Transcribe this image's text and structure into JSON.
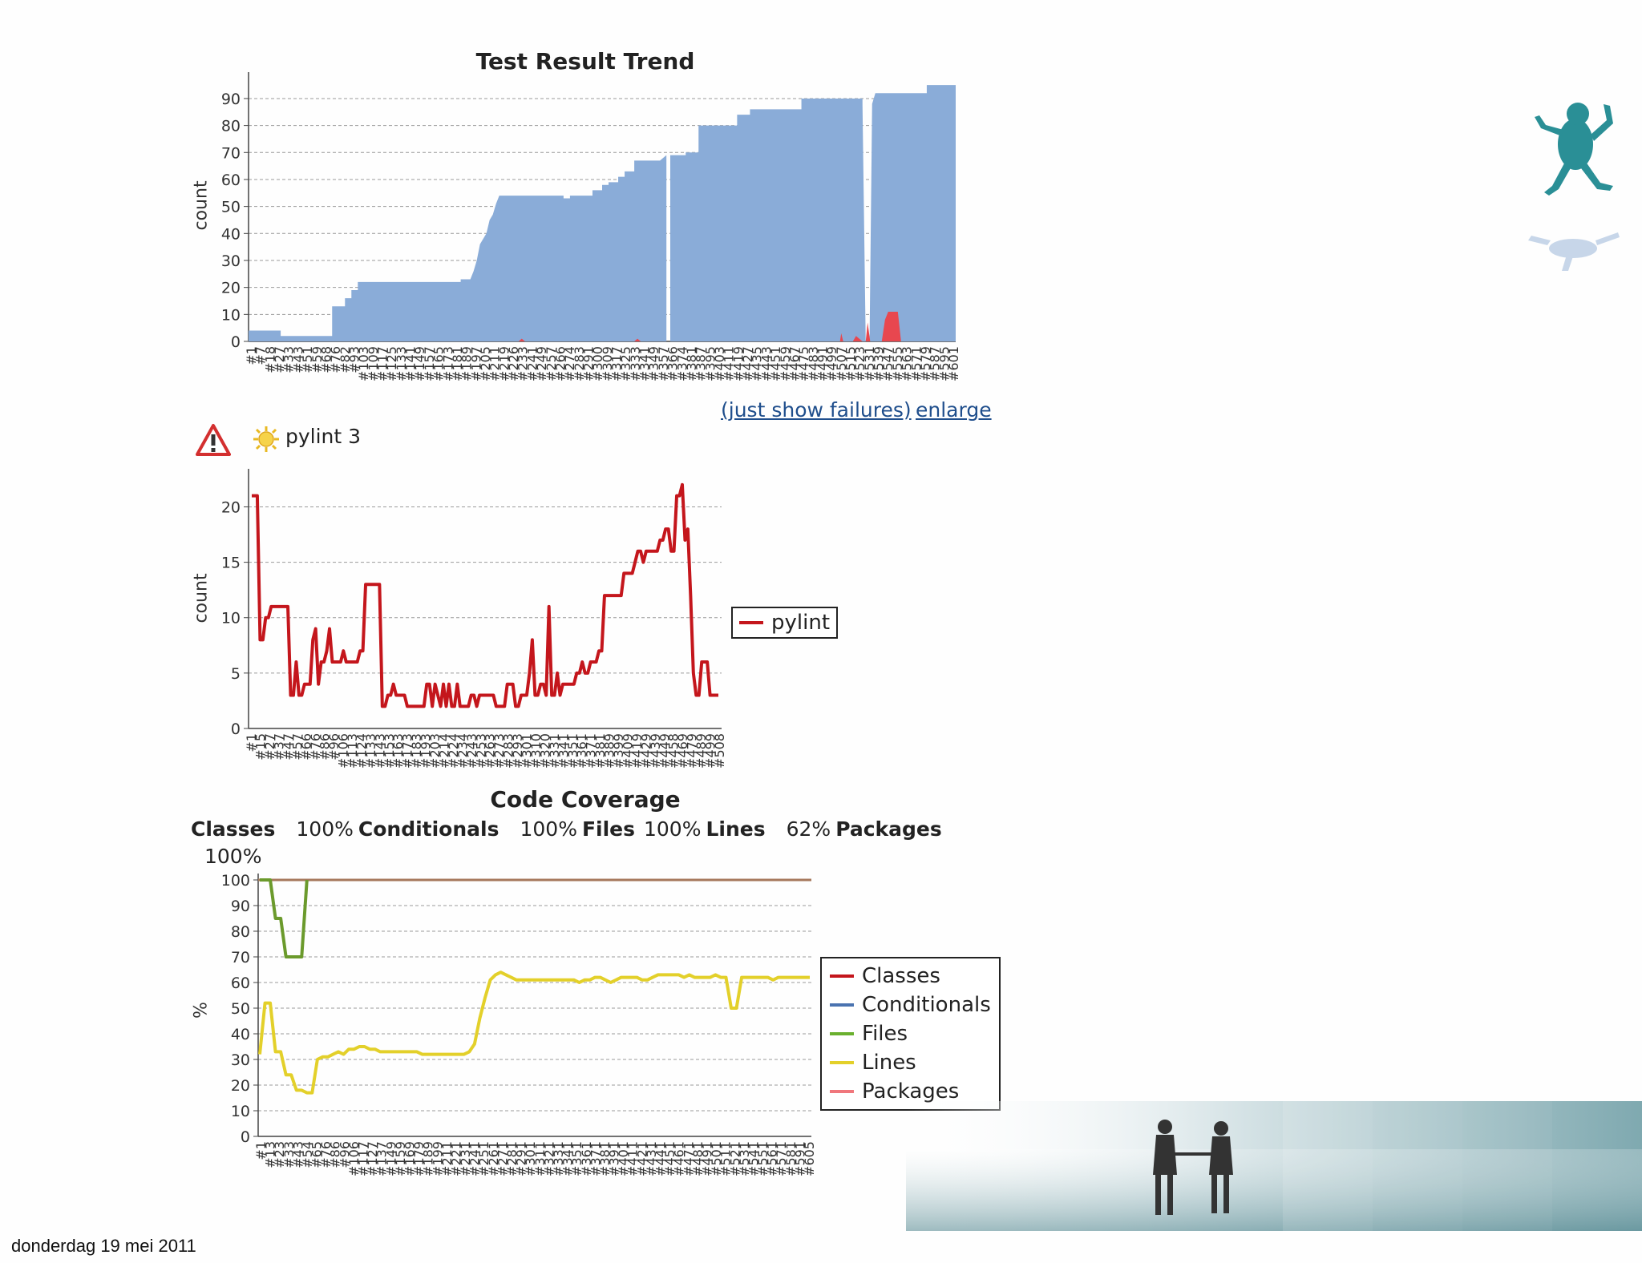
{
  "footer": {
    "date": "donderdag 19 mei 2011"
  },
  "colors": {
    "pass": "#8aacd8",
    "fail": "#e8474f",
    "pylint": "#c4161c",
    "classes": "#c4161c",
    "conditionals": "#4a73b0",
    "files": "#6ab02e",
    "lines": "#e3d02a",
    "packages": "#f0777c",
    "warning": "#d32f2f"
  },
  "links": {
    "just_show_failures": "(just show failures)",
    "enlarge": "enlarge"
  },
  "pylint_header": {
    "label": "pylint 3",
    "warning_icon": "warning-triangle-icon",
    "sun_icon": "sun-icon"
  },
  "coverage_summary": {
    "items": [
      {
        "name": "Classes",
        "value": "100%"
      },
      {
        "name": "Conditionals",
        "value": "100%"
      },
      {
        "name": "Files",
        "value": "100%"
      },
      {
        "name": "Lines",
        "value": "62%"
      },
      {
        "name": "Packages",
        "value": "100%"
      }
    ]
  },
  "chart_data": [
    {
      "type": "area",
      "title": "Test Result Trend",
      "ylabel": "count",
      "xlabel": "",
      "ylim": [
        0,
        98
      ],
      "yticks": [
        0,
        10,
        20,
        30,
        40,
        50,
        60,
        70,
        80,
        90
      ],
      "grid": true,
      "x_ticks": [
        "#1",
        "#7",
        "#18",
        "#27",
        "#33",
        "#43",
        "#51",
        "#59",
        "#68",
        "#76",
        "#82",
        "#93",
        "#103",
        "#109",
        "#117",
        "#125",
        "#133",
        "#141",
        "#149",
        "#157",
        "#165",
        "#173",
        "#181",
        "#189",
        "#197",
        "#205",
        "#211",
        "#219",
        "#226",
        "#233",
        "#241",
        "#249",
        "#257",
        "#266",
        "#274",
        "#283",
        "#291",
        "#300",
        "#309",
        "#317",
        "#325",
        "#333",
        "#341",
        "#349",
        "#357",
        "#366",
        "#374",
        "#381",
        "#387",
        "#395",
        "#403",
        "#411",
        "#419",
        "#427",
        "#435",
        "#443",
        "#451",
        "#459",
        "#467",
        "#475",
        "#483",
        "#491",
        "#499",
        "#507",
        "#515",
        "#523",
        "#531",
        "#539",
        "#547",
        "#555",
        "#563",
        "#571",
        "#579",
        "#587",
        "#595",
        "#601"
      ],
      "series": [
        {
          "name": "Passed",
          "points": [
            [
              0,
              4
            ],
            [
              0.05,
              4
            ],
            [
              0.05,
              2
            ],
            [
              0.13,
              2
            ],
            [
              0.13,
              13
            ],
            [
              0.15,
              13
            ],
            [
              0.15,
              16
            ],
            [
              0.16,
              16
            ],
            [
              0.16,
              19
            ],
            [
              0.17,
              19
            ],
            [
              0.17,
              22
            ],
            [
              0.33,
              22
            ],
            [
              0.33,
              23
            ],
            [
              0.345,
              23
            ],
            [
              0.35,
              26
            ],
            [
              0.355,
              30
            ],
            [
              0.36,
              36
            ],
            [
              0.37,
              40
            ],
            [
              0.375,
              45
            ],
            [
              0.38,
              47
            ],
            [
              0.385,
              51
            ],
            [
              0.39,
              54
            ],
            [
              0.49,
              54
            ],
            [
              0.49,
              53
            ],
            [
              0.5,
              53
            ],
            [
              0.5,
              54
            ],
            [
              0.535,
              54
            ],
            [
              0.535,
              56
            ],
            [
              0.55,
              56
            ],
            [
              0.55,
              58
            ],
            [
              0.56,
              58
            ],
            [
              0.56,
              59
            ],
            [
              0.575,
              59
            ],
            [
              0.575,
              61
            ],
            [
              0.585,
              61
            ],
            [
              0.585,
              63
            ],
            [
              0.6,
              63
            ],
            [
              0.6,
              67
            ],
            [
              0.64,
              67
            ],
            [
              0.645,
              68
            ],
            [
              0.65,
              69
            ],
            [
              0.65,
              0
            ],
            [
              0.656,
              0
            ],
            [
              0.656,
              69
            ],
            [
              0.68,
              69
            ],
            [
              0.68,
              70
            ],
            [
              0.7,
              70
            ],
            [
              0.7,
              80
            ],
            [
              0.76,
              80
            ],
            [
              0.76,
              84
            ],
            [
              0.78,
              84
            ],
            [
              0.78,
              86
            ],
            [
              0.86,
              86
            ],
            [
              0.86,
              90
            ],
            [
              0.955,
              90
            ],
            [
              0.955,
              88
            ],
            [
              0.96,
              0
            ],
            [
              0.966,
              0
            ],
            [
              0.97,
              88
            ],
            [
              0.975,
              92
            ],
            [
              1.055,
              92
            ],
            [
              1.055,
              95
            ],
            [
              1.1,
              95
            ]
          ]
        },
        {
          "name": "Failed",
          "points": [
            [
              0.42,
              0
            ],
            [
              0.425,
              1
            ],
            [
              0.43,
              0
            ],
            [
              0.6,
              0
            ],
            [
              0.605,
              1
            ],
            [
              0.61,
              0
            ],
            [
              0.92,
              0
            ],
            [
              0.922,
              3
            ],
            [
              0.925,
              0
            ],
            [
              0.94,
              0
            ],
            [
              0.945,
              2
            ],
            [
              0.955,
              0
            ],
            [
              0.96,
              0
            ],
            [
              0.963,
              7
            ],
            [
              0.967,
              0
            ],
            [
              0.985,
              0
            ],
            [
              0.99,
              8
            ],
            [
              0.995,
              11
            ],
            [
              1.01,
              11
            ],
            [
              1.015,
              0
            ]
          ]
        }
      ],
      "x_range": [
        0,
        1.1
      ]
    },
    {
      "type": "line",
      "title": "",
      "ylabel": "count",
      "xlabel": "",
      "ylim": [
        0,
        23
      ],
      "yticks": [
        0,
        5,
        10,
        15,
        20
      ],
      "grid": true,
      "legend": {
        "placement": "right",
        "entries": [
          "pylint"
        ]
      },
      "x_ticks": [
        "#1",
        "#15",
        "#27",
        "#37",
        "#47",
        "#57",
        "#66",
        "#76",
        "#86",
        "#96",
        "#106",
        "#113",
        "#124",
        "#133",
        "#143",
        "#153",
        "#163",
        "#173",
        "#183",
        "#193",
        "#203",
        "#214",
        "#224",
        "#234",
        "#243",
        "#253",
        "#263",
        "#273",
        "#283",
        "#293",
        "#301",
        "#310",
        "#320",
        "#331",
        "#341",
        "#351",
        "#361",
        "#371",
        "#381",
        "#389",
        "#399",
        "#409",
        "#419",
        "#429",
        "#439",
        "#449",
        "#458",
        "#469",
        "#479",
        "#489",
        "#499",
        "#508"
      ],
      "series": [
        {
          "name": "pylint",
          "values": [
            21,
            21,
            21,
            8,
            8,
            10,
            10,
            11,
            11,
            11,
            11,
            11,
            11,
            11,
            3,
            3,
            6,
            3,
            3,
            4,
            4,
            4,
            8,
            9,
            4,
            6,
            6,
            7,
            9,
            6,
            6,
            6,
            6,
            7,
            6,
            6,
            6,
            6,
            6,
            7,
            7,
            13,
            13,
            13,
            13,
            13,
            13,
            2,
            2,
            3,
            3,
            4,
            3,
            3,
            3,
            3,
            2,
            2,
            2,
            2,
            2,
            2,
            2,
            4,
            4,
            2,
            4,
            3,
            2,
            4,
            2,
            4,
            2,
            2,
            4,
            2,
            2,
            2,
            2,
            3,
            3,
            2,
            3,
            3,
            3,
            3,
            3,
            3,
            2,
            2,
            2,
            2,
            4,
            4,
            4,
            2,
            2,
            3,
            3,
            3,
            5,
            8,
            3,
            3,
            4,
            4,
            3,
            11,
            3,
            3,
            5,
            3,
            4,
            4,
            4,
            4,
            4,
            5,
            5,
            6,
            5,
            5,
            6,
            6,
            6,
            7,
            7,
            12,
            12,
            12,
            12,
            12,
            12,
            12,
            14,
            14,
            14,
            14,
            15,
            16,
            16,
            15,
            16,
            16,
            16,
            16,
            16,
            17,
            17,
            18,
            18,
            16,
            16,
            21,
            21,
            22,
            17,
            18,
            12,
            5,
            3,
            3,
            6,
            6,
            6,
            3,
            3,
            3,
            3
          ]
        }
      ]
    },
    {
      "type": "line",
      "title": "Code Coverage",
      "ylabel": "%",
      "xlabel": "",
      "ylim": [
        0,
        100
      ],
      "yticks": [
        0,
        10,
        20,
        30,
        40,
        50,
        60,
        70,
        80,
        90,
        100
      ],
      "grid": true,
      "legend": {
        "placement": "right",
        "entries": [
          "Classes",
          "Conditionals",
          "Files",
          "Lines",
          "Packages"
        ]
      },
      "x_ticks": [
        "#1",
        "#13",
        "#23",
        "#33",
        "#43",
        "#54",
        "#65",
        "#76",
        "#86",
        "#96",
        "#106",
        "#117",
        "#127",
        "#137",
        "#149",
        "#159",
        "#169",
        "#179",
        "#189",
        "#199",
        "#211",
        "#221",
        "#231",
        "#241",
        "#251",
        "#261",
        "#271",
        "#281",
        "#291",
        "#301",
        "#311",
        "#321",
        "#331",
        "#341",
        "#351",
        "#361",
        "#371",
        "#381",
        "#391",
        "#401",
        "#411",
        "#421",
        "#431",
        "#441",
        "#451",
        "#461",
        "#471",
        "#481",
        "#491",
        "#501",
        "#511",
        "#521",
        "#531",
        "#541",
        "#551",
        "#561",
        "#571",
        "#581",
        "#591",
        "#605"
      ],
      "series": [
        {
          "name": "Classes",
          "values": [
            100
          ]
        },
        {
          "name": "Conditionals",
          "values": [
            100
          ]
        },
        {
          "name": "Files",
          "values": [
            100,
            100,
            100,
            85,
            85,
            70,
            70,
            70,
            70,
            100
          ]
        },
        {
          "name": "Lines",
          "values": [
            32,
            52,
            52,
            33,
            33,
            24,
            24,
            18,
            18,
            17,
            17,
            30,
            31,
            31,
            32,
            33,
            32,
            34,
            34,
            35,
            35,
            34,
            34,
            33,
            33,
            33,
            33,
            33,
            33,
            33,
            33,
            32,
            32,
            32,
            32,
            32,
            32,
            32,
            32,
            32,
            33,
            36,
            46,
            54,
            61,
            63,
            64,
            63,
            62,
            61,
            61,
            61,
            61,
            61,
            61,
            61,
            61,
            61,
            61,
            61,
            61,
            60,
            61,
            61,
            62,
            62,
            61,
            60,
            61,
            62,
            62,
            62,
            62,
            61,
            61,
            62,
            63,
            63,
            63,
            63,
            63,
            62,
            63,
            62,
            62,
            62,
            62,
            63,
            62,
            62,
            50,
            50,
            62,
            62,
            62,
            62,
            62,
            62,
            61,
            62,
            62,
            62,
            62,
            62,
            62,
            62
          ]
        },
        {
          "name": "Packages",
          "values": [
            100
          ]
        }
      ]
    }
  ]
}
